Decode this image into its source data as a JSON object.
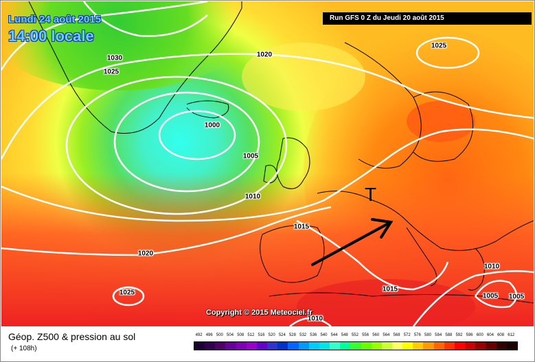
{
  "header": {
    "date_label": "Lundi 24 août 2015",
    "time_label": "14:00 locale",
    "run_label": "Run GFS 0 Z du Jeudi 20 août 2015"
  },
  "map": {
    "copyright": "Copyright © 2015 Meteociel.fr",
    "low_marker": "T",
    "isobar_labels": [
      "1030",
      "1025",
      "1020",
      "1025",
      "1000",
      "1005",
      "1010",
      "1015",
      "1020",
      "1025",
      "1015",
      "1010",
      "1010",
      "1005",
      "1005"
    ]
  },
  "legend": {
    "title": "Géop. Z500 & pression au sol",
    "subtitle": "(+ 108h)",
    "scale_values": [
      "492",
      "496",
      "500",
      "504",
      "508",
      "512",
      "516",
      "520",
      "524",
      "528",
      "532",
      "536",
      "540",
      "544",
      "548",
      "552",
      "556",
      "560",
      "564",
      "568",
      "572",
      "576",
      "580",
      "584",
      "588",
      "592",
      "596",
      "600",
      "604",
      "608",
      "612"
    ],
    "scale_colors": [
      "#1a0033",
      "#33004d",
      "#4d0066",
      "#660099",
      "#8000b3",
      "#9900cc",
      "#6600cc",
      "#3333cc",
      "#0033cc",
      "#0066ff",
      "#0099ff",
      "#00ccff",
      "#00e6e6",
      "#33ffcc",
      "#00ff99",
      "#33ff33",
      "#66ff00",
      "#99ff00",
      "#ccff33",
      "#ffff66",
      "#ffff00",
      "#ffcc00",
      "#ff9900",
      "#ff6600",
      "#ff3300",
      "#ff0000",
      "#cc0000",
      "#990000",
      "#660000",
      "#330000",
      "#1a0000"
    ]
  },
  "colors": {
    "title_text": "#66ccff",
    "banner_bg": "#000000",
    "isobar": "#ffffff",
    "arrow": "#000000"
  }
}
